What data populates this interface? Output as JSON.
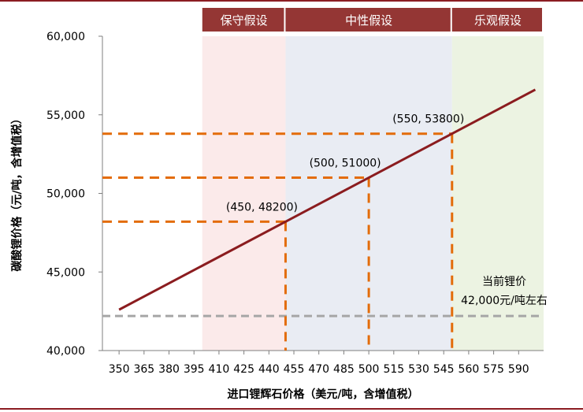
{
  "chart_data": {
    "type": "line",
    "title": "",
    "xlabel": "进口锂辉石价格（美元/吨，含增值税）",
    "ylabel": "碳酸锂价格（元/吨，含增值税）",
    "xlim": [
      340,
      605
    ],
    "ylim": [
      40000,
      60000
    ],
    "x_ticks": [
      350,
      365,
      380,
      395,
      410,
      425,
      440,
      455,
      470,
      485,
      500,
      515,
      530,
      545,
      560,
      575,
      590
    ],
    "y_ticks": [
      40000,
      45000,
      50000,
      55000,
      60000
    ],
    "y_tick_labels": [
      "40,000",
      "45,000",
      "50,000",
      "55,000",
      "60,000"
    ],
    "series": [
      {
        "name": "",
        "color": "#8b1c1f",
        "x": [
          350,
          600
        ],
        "y": [
          42600,
          56600
        ]
      }
    ],
    "highlighted_points": [
      {
        "x": 450,
        "y": 48200,
        "label": "(450, 48200)"
      },
      {
        "x": 500,
        "y": 51000,
        "label": "(500, 51000)"
      },
      {
        "x": 550,
        "y": 53800,
        "label": "(550, 53800)"
      }
    ],
    "scenario_bands": [
      {
        "label": "保守假设",
        "x_from": 400,
        "x_to": 450,
        "fill": "#fbeaea"
      },
      {
        "label": "中性假设",
        "x_from": 450,
        "x_to": 550,
        "fill": "#e9ecf3"
      },
      {
        "label": "乐观假设",
        "x_from": 550,
        "x_to": 605,
        "fill": "#ecf3e2"
      }
    ],
    "reference_line": {
      "y": 42200,
      "color": "#a6a6a6",
      "annotation": [
        "当前锂价",
        "42,000元/吨左右"
      ]
    },
    "guide_color": "#e36c0a",
    "band_header_color": "#943634",
    "grid": false,
    "legend": "none"
  }
}
